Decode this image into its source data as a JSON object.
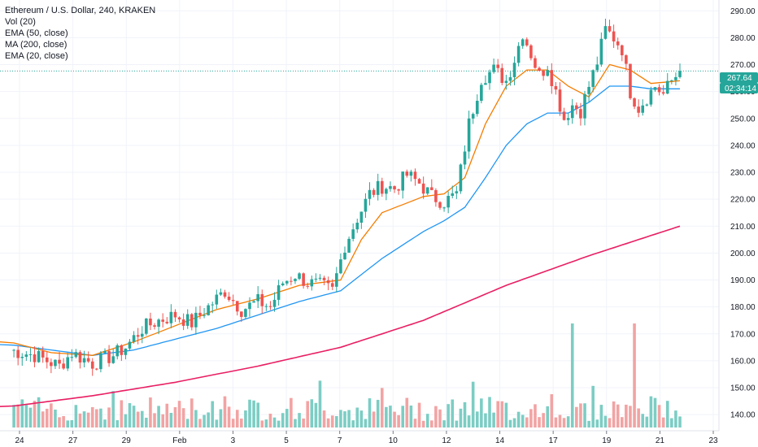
{
  "legend": {
    "title": "Ethereum / U.S. Dollar, 240, KRAKEN",
    "vol": "Vol (20)",
    "ema50": "EMA (50, close)",
    "ma200": "MA (200, close)",
    "ema20": "EMA (20, close)"
  },
  "price_tags": {
    "last_price": "267.64",
    "countdown": "02:34:14"
  },
  "colors": {
    "up": "#26a69a",
    "down": "#ef5350",
    "vol_up": "#7ccdc4",
    "vol_down": "#f2a3a3",
    "ema20": "#f57c00",
    "ema50": "#2196f3",
    "ma200": "#e91e63",
    "last_price_tag": "#26a69a",
    "grid": "#f0f3fa",
    "axis_text": "#131722"
  },
  "chart_data": {
    "type": "candlestick",
    "title": "Ethereum / U.S. Dollar, 240, KRAKEN",
    "ylim": [
      134,
      294
    ],
    "y_ticks": [
      140,
      150,
      160,
      170,
      180,
      190,
      200,
      210,
      220,
      230,
      240,
      250,
      260,
      270,
      280,
      290
    ],
    "x_ticks": [
      "24",
      "27",
      "29",
      "Feb",
      "3",
      "5",
      "7",
      "10",
      "12",
      "14",
      "17",
      "19",
      "21",
      "23"
    ],
    "last_price": 267.64,
    "close_path": [
      [
        0,
        164
      ],
      [
        6,
        162
      ],
      [
        12,
        158
      ],
      [
        15,
        163
      ],
      [
        20,
        159
      ],
      [
        25,
        162
      ],
      [
        28,
        165
      ],
      [
        32,
        172
      ],
      [
        36,
        175
      ],
      [
        40,
        177
      ],
      [
        44,
        174
      ],
      [
        48,
        180
      ],
      [
        52,
        186
      ],
      [
        56,
        179
      ],
      [
        60,
        182
      ],
      [
        63,
        180
      ],
      [
        66,
        189
      ],
      [
        69,
        192
      ],
      [
        72,
        189
      ],
      [
        75,
        188
      ],
      [
        78,
        186
      ],
      [
        81,
        203
      ],
      [
        84,
        213
      ],
      [
        87,
        222
      ],
      [
        90,
        225
      ],
      [
        93,
        224
      ],
      [
        96,
        229
      ],
      [
        99,
        226
      ],
      [
        102,
        221
      ],
      [
        105,
        219
      ],
      [
        108,
        222
      ],
      [
        111,
        248
      ],
      [
        114,
        265
      ],
      [
        117,
        268
      ],
      [
        120,
        264
      ],
      [
        122,
        272
      ],
      [
        124,
        282
      ],
      [
        126,
        274
      ],
      [
        128,
        266
      ],
      [
        130,
        270
      ],
      [
        132,
        260
      ],
      [
        134,
        250
      ],
      [
        136,
        255
      ],
      [
        138,
        253
      ],
      [
        140,
        262
      ],
      [
        142,
        271
      ],
      [
        144,
        283
      ],
      [
        146,
        280
      ],
      [
        148,
        276
      ],
      [
        150,
        260
      ],
      [
        152,
        254
      ],
      [
        154,
        258
      ],
      [
        156,
        262
      ],
      [
        158,
        259
      ],
      [
        160,
        264
      ],
      [
        162,
        267.64
      ]
    ],
    "ema20_path": [
      [
        0,
        167
      ],
      [
        10,
        163
      ],
      [
        20,
        162
      ],
      [
        30,
        167
      ],
      [
        40,
        173
      ],
      [
        50,
        179
      ],
      [
        60,
        183
      ],
      [
        70,
        188
      ],
      [
        80,
        190
      ],
      [
        85,
        205
      ],
      [
        90,
        215
      ],
      [
        100,
        221
      ],
      [
        105,
        222
      ],
      [
        110,
        228
      ],
      [
        115,
        248
      ],
      [
        120,
        262
      ],
      [
        125,
        268
      ],
      [
        130,
        268
      ],
      [
        135,
        262
      ],
      [
        140,
        258
      ],
      [
        145,
        270
      ],
      [
        150,
        268
      ],
      [
        155,
        263
      ],
      [
        162,
        264
      ]
    ],
    "ema50_path": [
      [
        0,
        166
      ],
      [
        10,
        164
      ],
      [
        20,
        162
      ],
      [
        30,
        164
      ],
      [
        40,
        168
      ],
      [
        50,
        172
      ],
      [
        60,
        177
      ],
      [
        70,
        182
      ],
      [
        80,
        186
      ],
      [
        85,
        192
      ],
      [
        90,
        198
      ],
      [
        100,
        208
      ],
      [
        105,
        212
      ],
      [
        110,
        217
      ],
      [
        115,
        228
      ],
      [
        120,
        240
      ],
      [
        125,
        248
      ],
      [
        130,
        252
      ],
      [
        135,
        252
      ],
      [
        140,
        256
      ],
      [
        145,
        262
      ],
      [
        150,
        262
      ],
      [
        155,
        261
      ],
      [
        162,
        261
      ]
    ],
    "ma200_path": [
      [
        0,
        143
      ],
      [
        20,
        147
      ],
      [
        40,
        152
      ],
      [
        60,
        158
      ],
      [
        80,
        165
      ],
      [
        100,
        175
      ],
      [
        120,
        188
      ],
      [
        140,
        199
      ],
      [
        162,
        210
      ]
    ],
    "volume_spikes": [
      [
        25,
        0.35
      ],
      [
        52,
        0.3
      ],
      [
        75,
        0.45
      ],
      [
        90,
        0.38
      ],
      [
        112,
        0.44
      ],
      [
        131,
        0.32
      ],
      [
        136,
        1.0
      ],
      [
        141,
        0.4
      ],
      [
        151,
        1.0
      ],
      [
        155,
        0.3
      ]
    ]
  }
}
